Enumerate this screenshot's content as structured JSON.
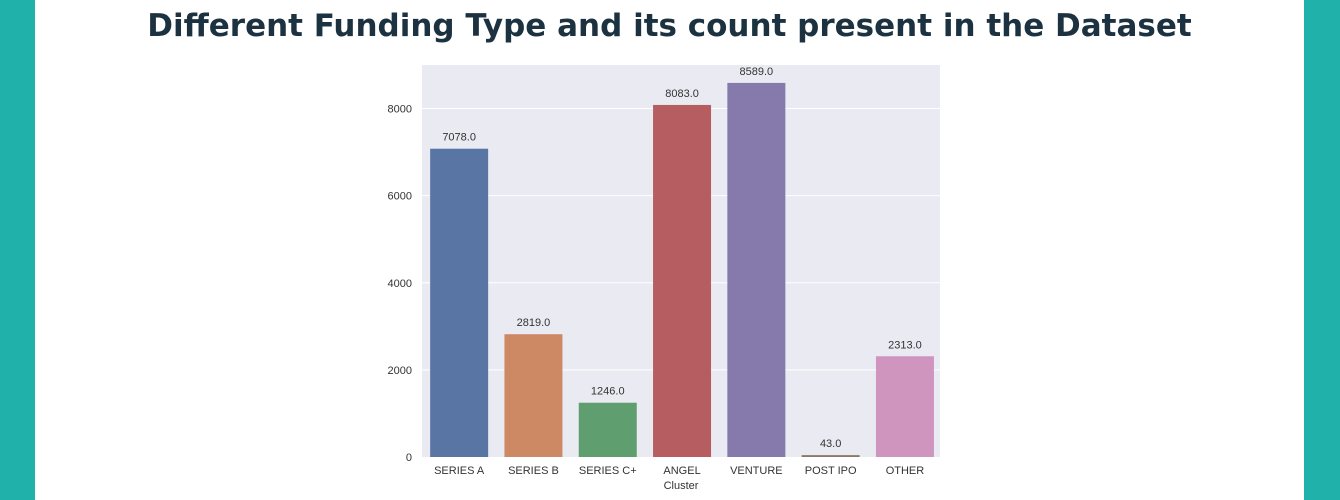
{
  "page": {
    "background_color": "#20b2aa",
    "title": "Different Funding Type and its count present in the Dataset"
  },
  "chart_data": {
    "type": "bar",
    "title": "",
    "xlabel": "Cluster",
    "ylabel": "",
    "categories": [
      "SERIES A",
      "SERIES B",
      "SERIES C+",
      "ANGEL",
      "VENTURE",
      "POST IPO",
      "OTHER"
    ],
    "values": [
      7078.0,
      2819.0,
      1246.0,
      8083.0,
      8589.0,
      43.0,
      2313.0
    ],
    "data_labels": [
      "7078.0",
      "2819.0",
      "1246.0",
      "8083.0",
      "8589.0",
      "43.0",
      "2313.0"
    ],
    "colors": [
      "#5975a4",
      "#cc8963",
      "#5f9e6e",
      "#b55d60",
      "#857aab",
      "#8d7866",
      "#d095bf"
    ],
    "yticks": [
      0,
      2000,
      4000,
      6000,
      8000
    ],
    "ylim": [
      0,
      9000
    ],
    "grid": true,
    "plot_background": "#eaeaf2"
  }
}
